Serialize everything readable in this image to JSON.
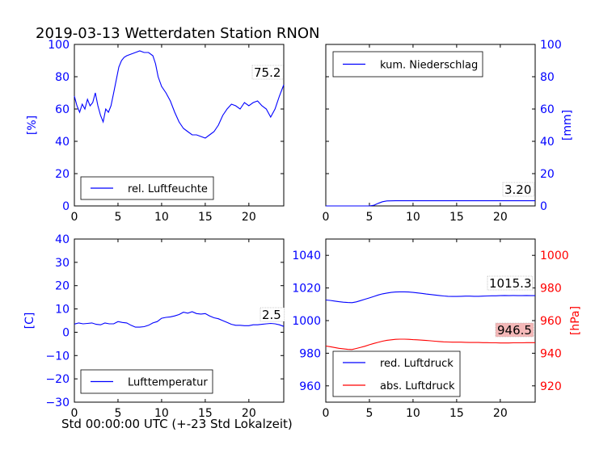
{
  "title": "2019-03-13 Wetterdaten Station RNON",
  "footer": "Std 00:00:00 UTC (+-23 Std Lokalzeit)",
  "colors": {
    "blue": "#0000ff",
    "red": "#ff0000",
    "label_bg": "#ffffff",
    "label_bg_red": "#f4b8b8"
  },
  "chart_data": [
    {
      "type": "line",
      "ylabel": "[%]",
      "xlim": [
        0,
        24
      ],
      "ylim": [
        0,
        100
      ],
      "xticks": [
        0,
        5,
        10,
        15,
        20
      ],
      "yticks": [
        0,
        20,
        40,
        60,
        80,
        100
      ],
      "y_axis_side": "left",
      "legend": "lower-left",
      "series": [
        {
          "name": "rel. Luftfeuchte",
          "color": "#0000ff",
          "x": [
            0,
            0.3,
            0.6,
            0.9,
            1.2,
            1.5,
            1.8,
            2.1,
            2.4,
            2.7,
            3.0,
            3.3,
            3.6,
            3.9,
            4.2,
            4.5,
            4.8,
            5.1,
            5.4,
            5.7,
            6.0,
            6.5,
            7.0,
            7.5,
            8.0,
            8.5,
            9.0,
            9.3,
            9.6,
            10.0,
            10.5,
            11.0,
            11.5,
            12.0,
            12.5,
            13.0,
            13.5,
            14.0,
            14.5,
            15.0,
            15.5,
            16.0,
            16.5,
            17.0,
            17.5,
            18.0,
            18.5,
            19.0,
            19.5,
            20.0,
            20.5,
            21.0,
            21.5,
            22.0,
            22.5,
            23.0,
            23.5,
            24.0
          ],
          "y": [
            68,
            62,
            58,
            63,
            60,
            66,
            62,
            64,
            70,
            62,
            56,
            52,
            60,
            58,
            62,
            70,
            78,
            86,
            90,
            92,
            93,
            94,
            95,
            96,
            95,
            95,
            93,
            88,
            80,
            74,
            70,
            65,
            58,
            52,
            48,
            46,
            44,
            44,
            43,
            42,
            44,
            46,
            50,
            56,
            60,
            63,
            62,
            60,
            64,
            62,
            64,
            65,
            62,
            60,
            55,
            60,
            68,
            75
          ]
        }
      ],
      "annotations": [
        "75.2"
      ]
    },
    {
      "type": "line",
      "ylabel": "[mm]",
      "xlim": [
        0,
        24
      ],
      "ylim": [
        0,
        100
      ],
      "xticks": [
        0,
        5,
        10,
        15,
        20
      ],
      "yticks": [
        0,
        20,
        40,
        60,
        80,
        100
      ],
      "y_axis_side": "right",
      "legend": "top-left",
      "series": [
        {
          "name": "kum. Niederschlag",
          "color": "#0000ff",
          "x": [
            0,
            5.0,
            5.5,
            6.0,
            6.5,
            7.0,
            8.0,
            10,
            15,
            20,
            24
          ],
          "y": [
            0,
            0,
            0.4,
            1.6,
            2.6,
            3.1,
            3.2,
            3.2,
            3.2,
            3.2,
            3.2
          ]
        }
      ],
      "annotations": [
        "3.20"
      ]
    },
    {
      "type": "line",
      "ylabel": "[C]",
      "xlim": [
        0,
        24
      ],
      "ylim": [
        -30,
        40
      ],
      "xticks": [
        0,
        5,
        10,
        15,
        20
      ],
      "yticks": [
        -30,
        -20,
        -10,
        0,
        10,
        20,
        30,
        40
      ],
      "y_axis_side": "left",
      "legend": "lower-left",
      "series": [
        {
          "name": "Lufttemperatur",
          "color": "#0000ff",
          "x": [
            0,
            0.5,
            1,
            1.5,
            2,
            2.5,
            3,
            3.5,
            4,
            4.5,
            5,
            5.5,
            6,
            6.5,
            7,
            7.5,
            8,
            8.5,
            9,
            9.5,
            10,
            10.5,
            11,
            11.5,
            12,
            12.5,
            13,
            13.5,
            14,
            14.5,
            15,
            15.5,
            16,
            16.5,
            17,
            17.5,
            18,
            18.5,
            19,
            19.5,
            20,
            20.5,
            21,
            21.5,
            22,
            22.5,
            23,
            23.5,
            24
          ],
          "y": [
            3.5,
            4,
            3.6,
            3.8,
            4,
            3.4,
            3.2,
            4,
            3.6,
            3.6,
            4.6,
            4.2,
            4,
            3,
            2.2,
            2.2,
            2.4,
            3,
            4,
            4.6,
            6,
            6.4,
            6.6,
            7,
            7.6,
            8.6,
            8.2,
            8.8,
            8,
            7.8,
            8,
            7,
            6.2,
            5.8,
            5,
            4.2,
            3.4,
            3,
            3,
            2.8,
            2.8,
            3.2,
            3.2,
            3.4,
            3.6,
            3.8,
            3.6,
            3.2,
            2.5
          ]
        }
      ],
      "annotations": [
        "2.5"
      ]
    },
    {
      "type": "line",
      "xlim": [
        0,
        24
      ],
      "ylim": [
        950,
        1050
      ],
      "ylim_right": [
        910,
        1010
      ],
      "ylabel_right": "[hPa]",
      "xticks": [
        0,
        5,
        10,
        15,
        20
      ],
      "yticks": [
        960,
        980,
        1000,
        1020,
        1040
      ],
      "yticks_right": [
        920,
        940,
        960,
        980,
        1000
      ],
      "legend": "lower-left",
      "series": [
        {
          "name": "red. Luftdruck",
          "color": "#0000ff",
          "axis": "left",
          "x": [
            0,
            0.5,
            1,
            1.5,
            2,
            2.5,
            3,
            3.5,
            4,
            4.5,
            5,
            5.5,
            6,
            6.5,
            7,
            7.5,
            8,
            8.5,
            9,
            9.5,
            10,
            10.5,
            11,
            11.5,
            12,
            12.5,
            13,
            13.5,
            14,
            14.5,
            15,
            15.5,
            16,
            16.5,
            17,
            17.5,
            18,
            18.5,
            19,
            19.5,
            20,
            20.5,
            21,
            21.5,
            22,
            22.5,
            23,
            23.5,
            24
          ],
          "y": [
            1012.6,
            1012.4,
            1012.0,
            1011.6,
            1011.3,
            1011.1,
            1011.0,
            1011.5,
            1012.3,
            1013.1,
            1013.9,
            1014.8,
            1015.7,
            1016.4,
            1016.9,
            1017.3,
            1017.5,
            1017.6,
            1017.6,
            1017.5,
            1017.3,
            1017.0,
            1016.7,
            1016.3,
            1016.0,
            1015.7,
            1015.4,
            1015.1,
            1014.9,
            1014.8,
            1014.8,
            1014.9,
            1015.0,
            1015.0,
            1014.9,
            1014.9,
            1015.0,
            1015.1,
            1015.2,
            1015.2,
            1015.3,
            1015.4,
            1015.3,
            1015.4,
            1015.3,
            1015.3,
            1015.4,
            1015.3,
            1015.3
          ]
        },
        {
          "name": "abs. Luftdruck",
          "color": "#ff0000",
          "axis": "right",
          "x": [
            0,
            0.5,
            1,
            1.5,
            2,
            2.5,
            3,
            3.5,
            4,
            4.5,
            5,
            5.5,
            6,
            6.5,
            7,
            7.5,
            8,
            8.5,
            9,
            9.5,
            10,
            10.5,
            11,
            11.5,
            12,
            12.5,
            13,
            13.5,
            14,
            14.5,
            15,
            15.5,
            16,
            16.5,
            17,
            17.5,
            18,
            18.5,
            19,
            19.5,
            20,
            20.5,
            21,
            21.5,
            22,
            22.5,
            23,
            23.5,
            24
          ],
          "y": [
            944.4,
            944.0,
            943.5,
            943.0,
            942.7,
            942.4,
            942.3,
            942.9,
            943.6,
            944.3,
            945.2,
            946.0,
            946.7,
            947.4,
            947.9,
            948.2,
            948.5,
            948.6,
            948.6,
            948.5,
            948.3,
            948.2,
            948.0,
            947.8,
            947.6,
            947.4,
            947.2,
            947.0,
            946.9,
            946.8,
            946.8,
            946.8,
            946.7,
            946.6,
            946.6,
            946.6,
            946.5,
            946.5,
            946.4,
            946.4,
            946.3,
            946.3,
            946.3,
            946.4,
            946.4,
            946.4,
            946.5,
            946.5,
            946.5
          ]
        }
      ],
      "annotations": [
        "1015.3",
        "946.5"
      ]
    }
  ]
}
